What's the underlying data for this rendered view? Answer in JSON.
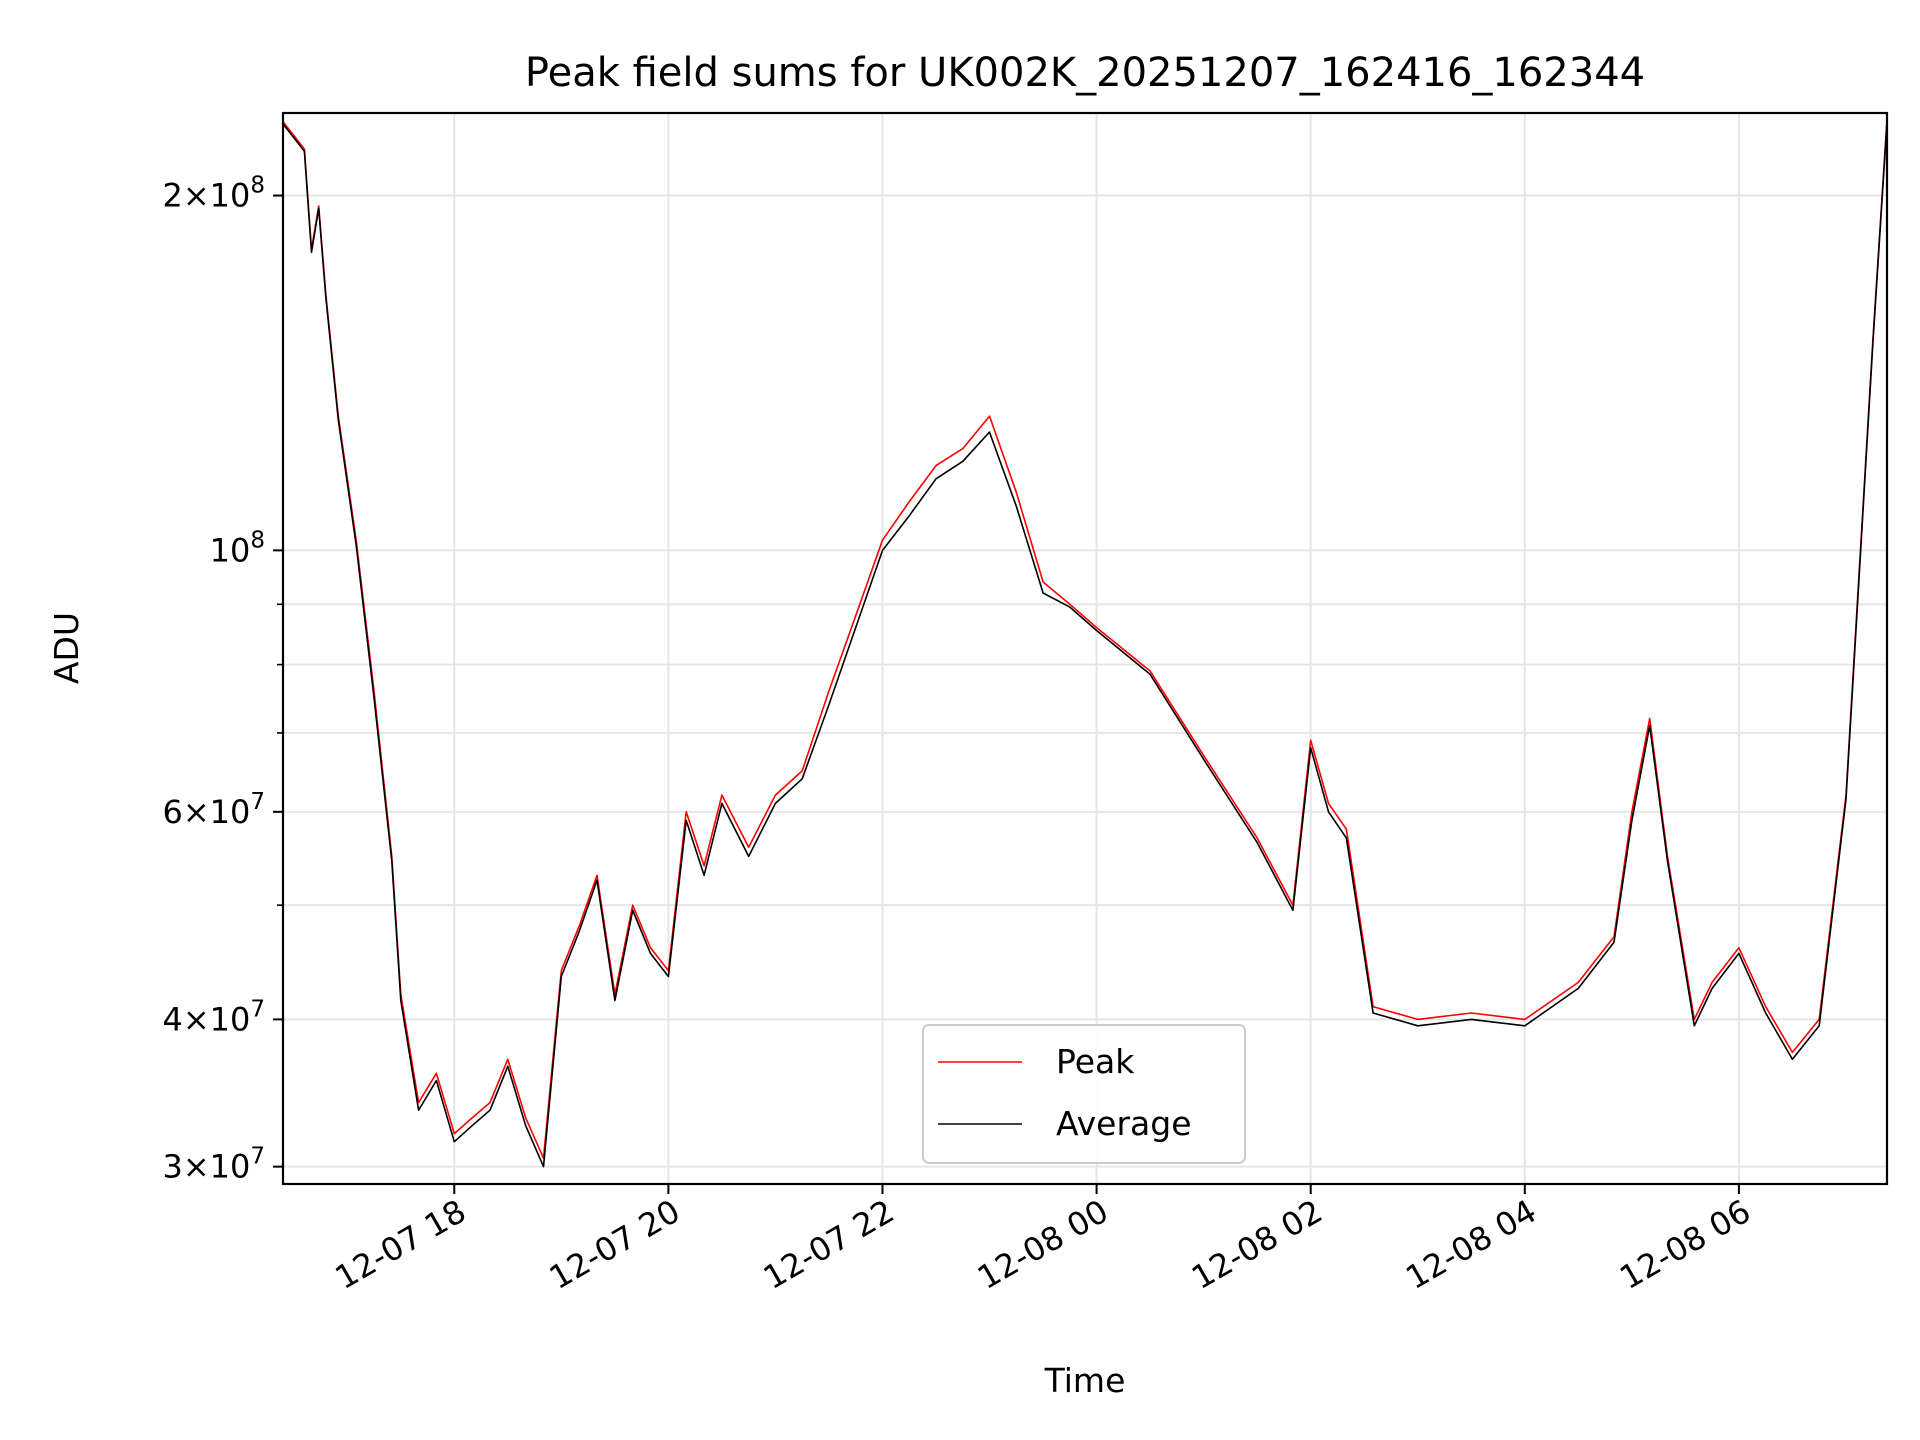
{
  "chart_data": {
    "type": "line",
    "title": "Peak field sums for UK002K_20251207_162416_162344",
    "xlabel": "Time",
    "ylabel": "ADU",
    "x_range": [
      "2025-12-07 16:24",
      "2025-12-08 07:23"
    ],
    "y_scale": "log",
    "ylim": [
      29000000,
      235000000
    ],
    "grid": true,
    "legend_position": "lower-center",
    "x_ticks": [
      "12-07 18",
      "12-07 20",
      "12-07 22",
      "12-08 00",
      "12-08 02",
      "12-08 04",
      "12-08 06"
    ],
    "y_ticks": [
      {
        "base": "2",
        "exp": "8",
        "value": 200000000
      },
      {
        "base": "",
        "exp": "8",
        "value": 100000000
      },
      {
        "base": "6",
        "exp": "7",
        "value": 60000000
      },
      {
        "base": "4",
        "exp": "7",
        "value": 40000000
      },
      {
        "base": "3",
        "exp": "7",
        "value": 30000000
      }
    ],
    "series": [
      {
        "name": "Peak",
        "color": "#ff0000",
        "x": [
          "2025-12-07 16:24",
          "2025-12-07 16:30",
          "2025-12-07 16:36",
          "2025-12-07 16:40",
          "2025-12-07 16:44",
          "2025-12-07 16:48",
          "2025-12-07 16:55",
          "2025-12-07 17:05",
          "2025-12-07 17:15",
          "2025-12-07 17:25",
          "2025-12-07 17:30",
          "2025-12-07 17:40",
          "2025-12-07 17:50",
          "2025-12-07 18:00",
          "2025-12-07 18:10",
          "2025-12-07 18:20",
          "2025-12-07 18:30",
          "2025-12-07 18:40",
          "2025-12-07 18:50",
          "2025-12-07 19:00",
          "2025-12-07 19:10",
          "2025-12-07 19:20",
          "2025-12-07 19:30",
          "2025-12-07 19:40",
          "2025-12-07 19:50",
          "2025-12-07 20:00",
          "2025-12-07 20:10",
          "2025-12-07 20:20",
          "2025-12-07 20:30",
          "2025-12-07 20:45",
          "2025-12-07 21:00",
          "2025-12-07 21:15",
          "2025-12-07 21:30",
          "2025-12-07 21:45",
          "2025-12-07 22:00",
          "2025-12-07 22:15",
          "2025-12-07 22:30",
          "2025-12-07 22:45",
          "2025-12-07 23:00",
          "2025-12-07 23:15",
          "2025-12-07 23:30",
          "2025-12-07 23:45",
          "2025-12-08 00:00",
          "2025-12-08 00:30",
          "2025-12-08 01:00",
          "2025-12-08 01:30",
          "2025-12-08 01:50",
          "2025-12-08 02:00",
          "2025-12-08 02:10",
          "2025-12-08 02:20",
          "2025-12-08 02:35",
          "2025-12-08 03:00",
          "2025-12-08 03:30",
          "2025-12-08 04:00",
          "2025-12-08 04:30",
          "2025-12-08 04:50",
          "2025-12-08 05:00",
          "2025-12-08 05:10",
          "2025-12-08 05:20",
          "2025-12-08 05:35",
          "2025-12-08 05:45",
          "2025-12-08 06:00",
          "2025-12-08 06:15",
          "2025-12-08 06:30",
          "2025-12-08 06:45",
          "2025-12-08 07:00",
          "2025-12-08 07:15",
          "2025-12-08 07:23"
        ],
        "y": [
          231000000,
          225000000,
          219000000,
          180000000,
          196000000,
          165000000,
          130000000,
          102000000,
          76000000,
          55000000,
          42000000,
          34000000,
          36000000,
          32000000,
          33000000,
          34000000,
          37000000,
          33000000,
          30500000,
          44000000,
          48000000,
          53000000,
          42000000,
          50000000,
          46000000,
          44000000,
          60000000,
          54000000,
          62000000,
          56000000,
          62000000,
          65000000,
          76000000,
          88000000,
          102000000,
          110000000,
          118000000,
          122000000,
          130000000,
          112000000,
          94000000,
          90000000,
          86000000,
          79000000,
          67000000,
          57000000,
          50000000,
          69000000,
          61000000,
          58000000,
          41000000,
          40000000,
          40500000,
          40000000,
          43000000,
          47000000,
          60000000,
          72000000,
          55000000,
          40000000,
          43000000,
          46000000,
          41000000,
          37500000,
          40000000,
          62000000,
          150000000,
          232000000
        ]
      },
      {
        "name": "Average",
        "color": "#000000",
        "x": [
          "2025-12-07 16:24",
          "2025-12-07 16:30",
          "2025-12-07 16:36",
          "2025-12-07 16:40",
          "2025-12-07 16:44",
          "2025-12-07 16:48",
          "2025-12-07 16:55",
          "2025-12-07 17:05",
          "2025-12-07 17:15",
          "2025-12-07 17:25",
          "2025-12-07 17:30",
          "2025-12-07 17:40",
          "2025-12-07 17:50",
          "2025-12-07 18:00",
          "2025-12-07 18:10",
          "2025-12-07 18:20",
          "2025-12-07 18:30",
          "2025-12-07 18:40",
          "2025-12-07 18:50",
          "2025-12-07 19:00",
          "2025-12-07 19:10",
          "2025-12-07 19:20",
          "2025-12-07 19:30",
          "2025-12-07 19:40",
          "2025-12-07 19:50",
          "2025-12-07 20:00",
          "2025-12-07 20:10",
          "2025-12-07 20:20",
          "2025-12-07 20:30",
          "2025-12-07 20:45",
          "2025-12-07 21:00",
          "2025-12-07 21:15",
          "2025-12-07 21:30",
          "2025-12-07 21:45",
          "2025-12-07 22:00",
          "2025-12-07 22:15",
          "2025-12-07 22:30",
          "2025-12-07 22:45",
          "2025-12-07 23:00",
          "2025-12-07 23:15",
          "2025-12-07 23:30",
          "2025-12-07 23:45",
          "2025-12-08 00:00",
          "2025-12-08 00:30",
          "2025-12-08 01:00",
          "2025-12-08 01:30",
          "2025-12-08 01:50",
          "2025-12-08 02:00",
          "2025-12-08 02:10",
          "2025-12-08 02:20",
          "2025-12-08 02:35",
          "2025-12-08 03:00",
          "2025-12-08 03:30",
          "2025-12-08 04:00",
          "2025-12-08 04:30",
          "2025-12-08 04:50",
          "2025-12-08 05:00",
          "2025-12-08 05:10",
          "2025-12-08 05:20",
          "2025-12-08 05:35",
          "2025-12-08 05:45",
          "2025-12-08 06:00",
          "2025-12-08 06:15",
          "2025-12-08 06:30",
          "2025-12-08 06:45",
          "2025-12-08 07:00",
          "2025-12-08 07:15",
          "2025-12-08 07:23"
        ],
        "y": [
          230000000,
          224000000,
          218000000,
          179000000,
          195000000,
          164000000,
          129000000,
          101000000,
          75000000,
          54500000,
          41500000,
          33500000,
          35500000,
          31500000,
          32500000,
          33500000,
          36500000,
          32500000,
          30000000,
          43500000,
          47500000,
          52500000,
          41500000,
          49500000,
          45500000,
          43500000,
          59000000,
          53000000,
          61000000,
          55000000,
          61000000,
          64000000,
          74000000,
          86000000,
          100000000,
          107000000,
          115000000,
          119000000,
          126000000,
          109000000,
          92000000,
          89500000,
          85500000,
          78500000,
          66500000,
          56500000,
          49500000,
          68000000,
          60000000,
          57000000,
          40500000,
          39500000,
          40000000,
          39500000,
          42500000,
          46500000,
          59000000,
          71000000,
          54500000,
          39500000,
          42500000,
          45500000,
          40500000,
          37000000,
          39500000,
          61500000,
          149000000,
          231000000
        ]
      }
    ]
  }
}
